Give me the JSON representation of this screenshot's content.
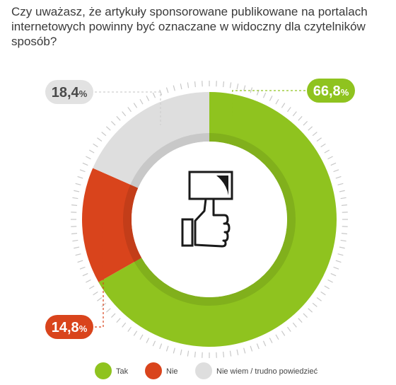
{
  "title": "Czy uważasz, że artykuły sponsorowane publikowane na portalach internetowych powinny być oznaczane w widoczny dla czytelników sposób?",
  "chart_data": {
    "type": "pie",
    "variant": "donut",
    "title": "Czy uważasz, że artykuły sponsorowane publikowane na portalach internetowych powinny być oznaczane w widoczny dla czytelników sposób?",
    "unit": "%",
    "slices": [
      {
        "label": "Tak",
        "value": 66.8,
        "display_value": "66,8",
        "color": "#8fc31f"
      },
      {
        "label": "Nie",
        "value": 14.8,
        "display_value": "14,8",
        "color": "#d9441c"
      },
      {
        "label": "Nie wiem / trudno powiedzieć",
        "value": 18.4,
        "display_value": "18,4",
        "color": "#dedede"
      }
    ],
    "legend_position": "bottom",
    "center_icon": "thumbs-up-holding-sign-icon"
  }
}
